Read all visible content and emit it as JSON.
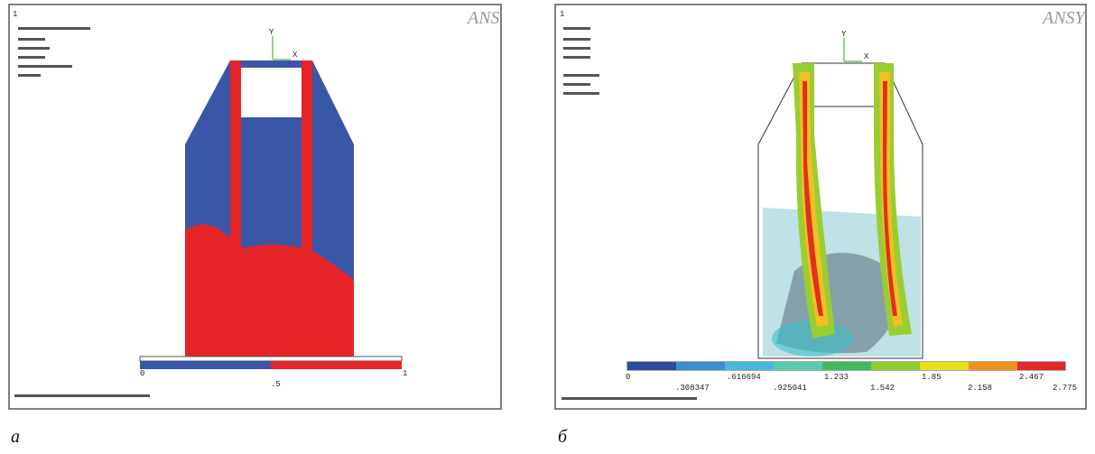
{
  "panels": [
    {
      "caption": "a",
      "logo": "ANS",
      "corner_number": "1",
      "axes": [
        "Y",
        "X"
      ],
      "legend_labels": [
        "0",
        ".5",
        "1"
      ]
    },
    {
      "caption": "б",
      "logo": "ANSY",
      "corner_number": "1",
      "axes": [
        "Y",
        "X"
      ],
      "legend_labels_top": [
        "0",
        ".616694",
        "1.233",
        "1.85",
        "2.467"
      ],
      "legend_labels_bottom": [
        ".308347",
        ".925041",
        "1.542",
        "2.158",
        "2.775"
      ]
    }
  ]
}
